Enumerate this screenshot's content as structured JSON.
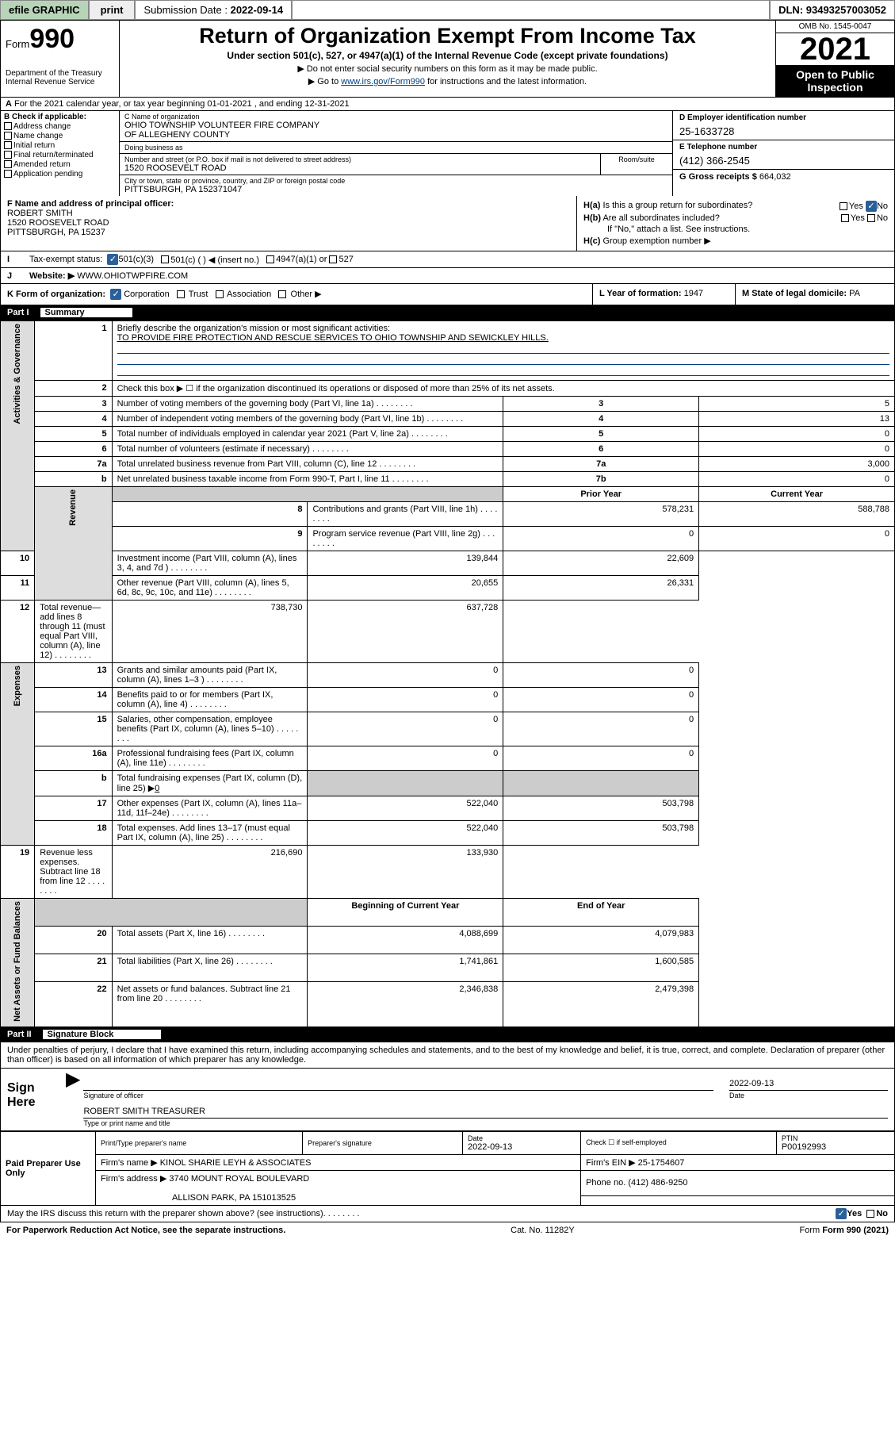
{
  "topbar": {
    "efile": "efile GRAPHIC",
    "print": "print",
    "submission_label": "Submission Date :",
    "submission_date": "2022-09-14",
    "dln_label": "DLN:",
    "dln": "93493257003052"
  },
  "head": {
    "form": "Form",
    "form_num": "990",
    "dept": "Department of the Treasury\nInternal Revenue Service",
    "title": "Return of Organization Exempt From Income Tax",
    "subtitle": "Under section 501(c), 527, or 4947(a)(1) of the Internal Revenue Code (except private foundations)",
    "arrow1": "▶ Do not enter social security numbers on this form as it may be made public.",
    "arrow2_pre": "▶ Go to ",
    "arrow2_url": "www.irs.gov/Form990",
    "arrow2_post": " for instructions and the latest information.",
    "omb": "OMB No. 1545-0047",
    "year": "2021",
    "open": "Open to Public Inspection"
  },
  "row_a": "For the 2021 calendar year, or tax year beginning 01-01-2021  , and ending 12-31-2021",
  "b": {
    "label": "B Check if applicable:",
    "items": [
      "Address change",
      "Name change",
      "Initial return",
      "Final return/terminated",
      "Amended return",
      "Application pending"
    ]
  },
  "c": {
    "name_label": "C Name of organization",
    "name": "OHIO TOWNSHIP VOLUNTEER FIRE COMPANY\nOF ALLEGHENY COUNTY",
    "dba_label": "Doing business as",
    "dba": "",
    "addr_label": "Number and street (or P.O. box if mail is not delivered to street address)",
    "room_label": "Room/suite",
    "addr": "1520 ROOSEVELT ROAD",
    "city_label": "City or town, state or province, country, and ZIP or foreign postal code",
    "city": "PITTSBURGH, PA  152371047"
  },
  "d": {
    "label": "D Employer identification number",
    "val": "25-1633728"
  },
  "e": {
    "label": "E Telephone number",
    "val": "(412) 366-2545"
  },
  "g": {
    "label": "G Gross receipts $",
    "val": "664,032"
  },
  "f": {
    "label": "F Name and address of principal officer:",
    "name": "ROBERT SMITH",
    "addr1": "1520 ROOSEVELT ROAD",
    "addr2": "PITTSBURGH, PA  15237"
  },
  "h": {
    "a_q": "Is this a group return for subordinates?",
    "a_yes": "Yes",
    "a_no": "No",
    "b_q": "Are all subordinates included?",
    "b_note": "If \"No,\" attach a list. See instructions.",
    "c_q": "Group exemption number ▶"
  },
  "i": {
    "label": "Tax-exempt status:",
    "opt1": "501(c)(3)",
    "opt2": "501(c) (  ) ◀ (insert no.)",
    "opt3": "4947(a)(1) or",
    "opt4": "527"
  },
  "j": {
    "label": "Website: ▶",
    "val": "WWW.OHIOTWPFIRE.COM"
  },
  "k": {
    "label": "K Form of organization:",
    "corp": "Corporation",
    "trust": "Trust",
    "assoc": "Association",
    "other": "Other ▶"
  },
  "l": {
    "label": "L Year of formation:",
    "val": "1947"
  },
  "m": {
    "label": "M State of legal domicile:",
    "val": "PA"
  },
  "part1": {
    "num": "Part I",
    "name": "Summary"
  },
  "summary": {
    "line1_label": "Briefly describe the organization's mission or most significant activities:",
    "line1_text": "TO PROVIDE FIRE PROTECTION AND RESCUE SERVICES TO OHIO TOWNSHIP AND SEWICKLEY HILLS.",
    "line2": "Check this box ▶ ☐  if the organization discontinued its operations or disposed of more than 25% of its net assets.",
    "sidebars": {
      "gov": "Activities & Governance",
      "rev": "Revenue",
      "exp": "Expenses",
      "net": "Net Assets or Fund Balances"
    },
    "rows": [
      {
        "k": "3",
        "t": "Number of voting members of the governing body (Part VI, line 1a)",
        "n": "3",
        "v": "5"
      },
      {
        "k": "4",
        "t": "Number of independent voting members of the governing body (Part VI, line 1b)",
        "n": "4",
        "v": "13"
      },
      {
        "k": "5",
        "t": "Total number of individuals employed in calendar year 2021 (Part V, line 2a)",
        "n": "5",
        "v": "0"
      },
      {
        "k": "6",
        "t": "Total number of volunteers (estimate if necessary)",
        "n": "6",
        "v": "0"
      },
      {
        "k": "7a",
        "t": "Total unrelated business revenue from Part VIII, column (C), line 12",
        "n": "7a",
        "v": "3,000"
      },
      {
        "k": "b",
        "t": "Net unrelated business taxable income from Form 990-T, Part I, line 11",
        "n": "7b",
        "v": "0"
      }
    ],
    "colhdr_prior": "Prior Year",
    "colhdr_curr": "Current Year",
    "rev_rows": [
      {
        "k": "8",
        "t": "Contributions and grants (Part VIII, line 1h)",
        "p": "578,231",
        "c": "588,788"
      },
      {
        "k": "9",
        "t": "Program service revenue (Part VIII, line 2g)",
        "p": "0",
        "c": "0"
      },
      {
        "k": "10",
        "t": "Investment income (Part VIII, column (A), lines 3, 4, and 7d )",
        "p": "139,844",
        "c": "22,609"
      },
      {
        "k": "11",
        "t": "Other revenue (Part VIII, column (A), lines 5, 6d, 8c, 9c, 10c, and 11e)",
        "p": "20,655",
        "c": "26,331"
      },
      {
        "k": "12",
        "t": "Total revenue—add lines 8 through 11 (must equal Part VIII, column (A), line 12)",
        "p": "738,730",
        "c": "637,728"
      }
    ],
    "exp_rows": [
      {
        "k": "13",
        "t": "Grants and similar amounts paid (Part IX, column (A), lines 1–3 )",
        "p": "0",
        "c": "0"
      },
      {
        "k": "14",
        "t": "Benefits paid to or for members (Part IX, column (A), line 4)",
        "p": "0",
        "c": "0"
      },
      {
        "k": "15",
        "t": "Salaries, other compensation, employee benefits (Part IX, column (A), lines 5–10)",
        "p": "0",
        "c": "0"
      },
      {
        "k": "16a",
        "t": "Professional fundraising fees (Part IX, column (A), line 11e)",
        "p": "0",
        "c": "0"
      }
    ],
    "line16b_pre": "Total fundraising expenses (Part IX, column (D), line 25) ▶",
    "line16b_val": "0",
    "exp_rows2": [
      {
        "k": "17",
        "t": "Other expenses (Part IX, column (A), lines 11a–11d, 11f–24e)",
        "p": "522,040",
        "c": "503,798"
      },
      {
        "k": "18",
        "t": "Total expenses. Add lines 13–17 (must equal Part IX, column (A), line 25)",
        "p": "522,040",
        "c": "503,798"
      },
      {
        "k": "19",
        "t": "Revenue less expenses. Subtract line 18 from line 12",
        "p": "216,690",
        "c": "133,930"
      }
    ],
    "colhdr_begin": "Beginning of Current Year",
    "colhdr_end": "End of Year",
    "net_rows": [
      {
        "k": "20",
        "t": "Total assets (Part X, line 16)",
        "p": "4,088,699",
        "c": "4,079,983"
      },
      {
        "k": "21",
        "t": "Total liabilities (Part X, line 26)",
        "p": "1,741,861",
        "c": "1,600,585"
      },
      {
        "k": "22",
        "t": "Net assets or fund balances. Subtract line 21 from line 20",
        "p": "2,346,838",
        "c": "2,479,398"
      }
    ]
  },
  "part2": {
    "num": "Part II",
    "name": "Signature Block"
  },
  "sig": {
    "decl": "Under penalties of perjury, I declare that I have examined this return, including accompanying schedules and statements, and to the best of my knowledge and belief, it is true, correct, and complete. Declaration of preparer (other than officer) is based on all information of which preparer has any knowledge.",
    "sign_here": "Sign Here",
    "sig_officer": "Signature of officer",
    "date_lbl": "Date",
    "date": "2022-09-13",
    "name_title": "ROBERT SMITH TREASURER",
    "name_title_lbl": "Type or print name and title"
  },
  "prep": {
    "left": "Paid Preparer Use Only",
    "h_print": "Print/Type preparer's name",
    "h_sig": "Preparer's signature",
    "h_date": "Date",
    "date": "2022-09-13",
    "h_check": "Check ☐ if self-employed",
    "h_ptin": "PTIN",
    "ptin": "P00192993",
    "firm_name_lbl": "Firm's name    ▶",
    "firm_name": "KINOL SHARIE LEYH & ASSOCIATES",
    "firm_ein_lbl": "Firm's EIN ▶",
    "firm_ein": "25-1754607",
    "firm_addr_lbl": "Firm's address ▶",
    "firm_addr1": "3740 MOUNT ROYAL BOULEVARD",
    "firm_addr2": "ALLISON PARK, PA  151013525",
    "phone_lbl": "Phone no.",
    "phone": "(412) 486-9250"
  },
  "may_discuss": "May the IRS discuss this return with the preparer shown above? (see instructions)",
  "footer": {
    "pra": "For Paperwork Reduction Act Notice, see the separate instructions.",
    "cat": "Cat. No. 11282Y",
    "form": "Form 990 (2021)"
  }
}
